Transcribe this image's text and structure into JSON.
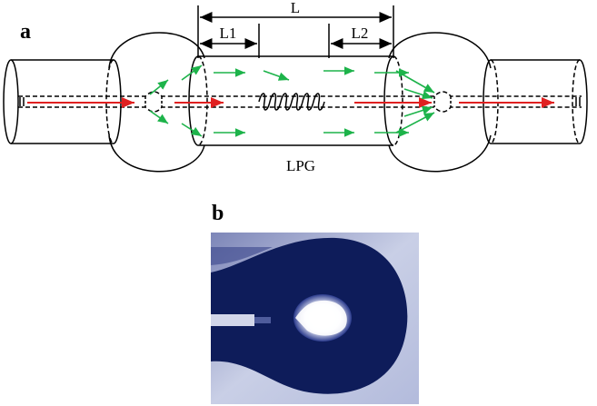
{
  "panels": {
    "a": {
      "label": "a",
      "dimensions": {
        "total": "L",
        "left": "L1",
        "right": "L2"
      },
      "grating": "LPG"
    },
    "b": {
      "label": "b"
    }
  }
}
